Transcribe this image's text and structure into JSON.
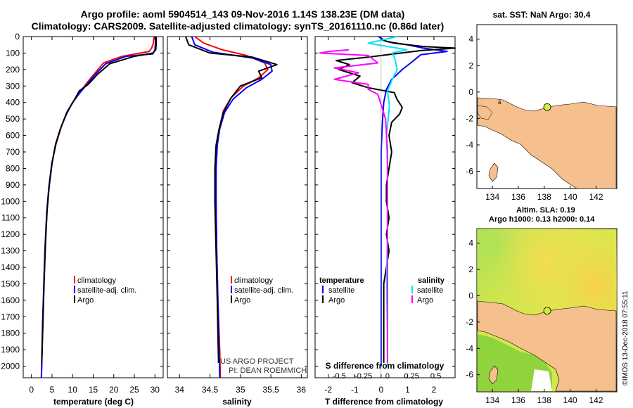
{
  "header": {
    "line1": "Argo profile: aoml 5904514_143 09-Nov-2016 1.14S 138.23E (DM data)",
    "line2": "Climatology: CARS2009. Satellite-adjusted climatology: synTS_20161110.nc (0.86d later)"
  },
  "colors": {
    "climatology": "#ff0000",
    "satellite": "#0000ff",
    "argo": "#000000",
    "sat_salinity": "#00e5ee",
    "argo_salinity": "#ff00ff",
    "land": "#f5c08e",
    "marker": "#c8f03c"
  },
  "depth_ticks": [
    "0",
    "100",
    "200",
    "300",
    "400",
    "500",
    "600",
    "700",
    "800",
    "900",
    "1000",
    "1100",
    "1200",
    "1300",
    "1400",
    "1500",
    "1600",
    "1700",
    "1800",
    "1900",
    "2000"
  ],
  "chart_data": [
    {
      "id": "temperature",
      "type": "line",
      "xlabel": "temperature (deg C)",
      "ylabel": "depth",
      "xlim": [
        -2,
        32
      ],
      "ylim": [
        2070,
        0
      ],
      "xticks": [
        "0",
        "5",
        "10",
        "15",
        "20",
        "25",
        "30"
      ],
      "legend": [
        "climatology",
        "satellite-adj. clim.",
        "Argo"
      ],
      "series": [
        {
          "name": "climatology",
          "color": "#ff0000",
          "points": [
            [
              29.8,
              0
            ],
            [
              29.6,
              40
            ],
            [
              29.2,
              70
            ],
            [
              28.6,
              90
            ],
            [
              22,
              120
            ],
            [
              17.5,
              160
            ],
            [
              15.5,
              220
            ],
            [
              13.5,
              280
            ],
            [
              12,
              330
            ],
            [
              10.5,
              380
            ],
            [
              8.8,
              450
            ],
            [
              7.2,
              550
            ],
            [
              6,
              650
            ],
            [
              5,
              760
            ],
            [
              4.3,
              900
            ],
            [
              3.8,
              1050
            ],
            [
              3.4,
              1250
            ],
            [
              3.1,
              1450
            ],
            [
              2.8,
              1700
            ],
            [
              2.5,
              2000
            ],
            [
              2.4,
              2070
            ]
          ]
        },
        {
          "name": "satellite-adj. clim.",
          "color": "#0000ff",
          "points": [
            [
              30.2,
              0
            ],
            [
              30.1,
              40
            ],
            [
              30,
              80
            ],
            [
              29.5,
              105
            ],
            [
              23,
              120
            ],
            [
              18,
              165
            ],
            [
              15.5,
              230
            ],
            [
              13.5,
              290
            ],
            [
              11.8,
              340
            ],
            [
              10,
              400
            ],
            [
              8.5,
              470
            ],
            [
              7,
              560
            ],
            [
              5.8,
              660
            ],
            [
              4.9,
              780
            ],
            [
              4.2,
              920
            ],
            [
              3.7,
              1070
            ],
            [
              3.3,
              1280
            ],
            [
              3,
              1500
            ],
            [
              2.7,
              1750
            ],
            [
              2.5,
              2000
            ],
            [
              2.4,
              2070
            ]
          ]
        },
        {
          "name": "Argo",
          "color": "#000000",
          "points": [
            [
              30.3,
              0
            ],
            [
              30.3,
              50
            ],
            [
              30.2,
              80
            ],
            [
              29.5,
              100
            ],
            [
              25,
              120
            ],
            [
              19,
              165
            ],
            [
              16,
              230
            ],
            [
              13.8,
              290
            ],
            [
              11.6,
              330
            ],
            [
              10.3,
              390
            ],
            [
              8.6,
              460
            ],
            [
              7.2,
              550
            ],
            [
              5.9,
              650
            ],
            [
              5,
              770
            ],
            [
              4.3,
              910
            ],
            [
              3.8,
              1060
            ],
            [
              3.4,
              1260
            ],
            [
              3.1,
              1480
            ],
            [
              2.8,
              1730
            ],
            [
              2.5,
              1980
            ]
          ]
        }
      ]
    },
    {
      "id": "salinity",
      "type": "line",
      "xlabel": "salinity",
      "ylabel": "depth",
      "xlim": [
        33.8,
        36.1
      ],
      "ylim": [
        2070,
        0
      ],
      "xticks": [
        "34",
        "34.5",
        "35",
        "35.5",
        "36"
      ],
      "legend": [
        "climatology",
        "satellite-adj. clim.",
        "Argo"
      ],
      "series": [
        {
          "name": "climatology",
          "color": "#ff0000",
          "points": [
            [
              34.25,
              0
            ],
            [
              34.4,
              40
            ],
            [
              34.7,
              80
            ],
            [
              35.1,
              115
            ],
            [
              35.4,
              160
            ],
            [
              35.45,
              200
            ],
            [
              35.3,
              250
            ],
            [
              35.05,
              300
            ],
            [
              34.85,
              370
            ],
            [
              34.72,
              450
            ],
            [
              34.66,
              550
            ],
            [
              34.62,
              650
            ],
            [
              34.6,
              800
            ],
            [
              34.6,
              1000
            ],
            [
              34.61,
              1300
            ],
            [
              34.63,
              1600
            ],
            [
              34.66,
              1900
            ],
            [
              34.67,
              2070
            ]
          ]
        },
        {
          "name": "satellite-adj. clim.",
          "color": "#0000ff",
          "points": [
            [
              34.2,
              0
            ],
            [
              34.25,
              50
            ],
            [
              34.55,
              95
            ],
            [
              35.2,
              130
            ],
            [
              35.5,
              170
            ],
            [
              35.52,
              210
            ],
            [
              35.35,
              260
            ],
            [
              35.1,
              310
            ],
            [
              34.88,
              380
            ],
            [
              34.74,
              460
            ],
            [
              34.66,
              560
            ],
            [
              34.62,
              660
            ],
            [
              34.6,
              800
            ],
            [
              34.6,
              1000
            ],
            [
              34.61,
              1300
            ],
            [
              34.63,
              1600
            ],
            [
              34.65,
              1900
            ],
            [
              34.66,
              2070
            ]
          ]
        },
        {
          "name": "Argo",
          "color": "#000000",
          "points": [
            [
              34.1,
              0
            ],
            [
              34.15,
              50
            ],
            [
              34.5,
              100
            ],
            [
              35.2,
              125
            ],
            [
              35.6,
              170
            ],
            [
              35.3,
              210
            ],
            [
              35.35,
              250
            ],
            [
              35,
              300
            ],
            [
              34.85,
              370
            ],
            [
              34.72,
              460
            ],
            [
              34.65,
              560
            ],
            [
              34.6,
              660
            ],
            [
              34.58,
              800
            ],
            [
              34.58,
              1000
            ],
            [
              34.6,
              1300
            ],
            [
              34.62,
              1600
            ],
            [
              34.64,
              1980
            ]
          ]
        }
      ]
    },
    {
      "id": "difference",
      "type": "line",
      "xlabel": "T difference from climatology",
      "x2label": "S difference from climatology",
      "xlim": [
        -2.5,
        2.8
      ],
      "x2lim": [
        -0.75,
        0.7
      ],
      "ylim": [
        2070,
        0
      ],
      "xticks": [
        "-2",
        "-1",
        "0",
        "1",
        "2"
      ],
      "x2ticks": [
        "-0.5",
        "-0.25",
        "0",
        "0.25",
        "0.5"
      ],
      "legend_temperature": {
        "heading": "temperature",
        "items": [
          "satellite",
          "Argo"
        ]
      },
      "legend_salinity": {
        "heading": "salinity",
        "items": [
          "satellite",
          "Argo"
        ]
      },
      "series": [
        {
          "name": "temperature satellite",
          "axis": "T",
          "color": "#0000ff",
          "points": [
            [
              -0.1,
              0
            ],
            [
              0.2,
              30
            ],
            [
              1,
              50
            ],
            [
              1.6,
              70
            ],
            [
              2.5,
              90
            ],
            [
              1.5,
              110
            ],
            [
              1.2,
              150
            ],
            [
              0.8,
              200
            ],
            [
              0.4,
              260
            ],
            [
              0.2,
              320
            ],
            [
              0.1,
              400
            ],
            [
              0.05,
              520
            ],
            [
              0,
              700
            ],
            [
              0,
              1000
            ],
            [
              0,
              1500
            ],
            [
              0,
              2000
            ]
          ]
        },
        {
          "name": "temperature Argo",
          "axis": "T",
          "color": "#000000",
          "points": [
            [
              0,
              20
            ],
            [
              0.5,
              40
            ],
            [
              1.6,
              60
            ],
            [
              2.8,
              70
            ],
            [
              1.5,
              85
            ],
            [
              0.5,
              105
            ],
            [
              -0.5,
              125
            ],
            [
              -1.7,
              145
            ],
            [
              -1.2,
              170
            ],
            [
              -1.6,
              200
            ],
            [
              -0.8,
              240
            ],
            [
              -1.1,
              280
            ],
            [
              -0.5,
              310
            ],
            [
              0.5,
              340
            ],
            [
              0.6,
              380
            ],
            [
              0.8,
              430
            ],
            [
              0.7,
              470
            ],
            [
              0.4,
              520
            ],
            [
              0.3,
              600
            ],
            [
              0.4,
              700
            ],
            [
              0.3,
              800
            ],
            [
              0.2,
              900
            ],
            [
              0.2,
              1000
            ],
            [
              0.3,
              1100
            ],
            [
              0.2,
              1200
            ],
            [
              0.3,
              1300
            ],
            [
              0.2,
              1400
            ],
            [
              0.1,
              1500
            ],
            [
              0.1,
              1700
            ],
            [
              0.1,
              1900
            ],
            [
              0.1,
              1980
            ]
          ]
        },
        {
          "name": "salinity satellite",
          "axis": "S",
          "color": "#00e5ee",
          "points": [
            [
              0.1,
              0
            ],
            [
              -0.2,
              40
            ],
            [
              0.2,
              80
            ],
            [
              0.05,
              100
            ],
            [
              0.08,
              140
            ],
            [
              0.1,
              200
            ],
            [
              0.05,
              260
            ],
            [
              0,
              330
            ],
            [
              0.02,
              420
            ],
            [
              -0.01,
              600
            ],
            [
              0,
              800
            ],
            [
              0,
              1000
            ],
            [
              0,
              1200
            ],
            [
              -0.01,
              1500
            ],
            [
              0,
              1800
            ],
            [
              0,
              2000
            ]
          ]
        },
        {
          "name": "salinity Argo",
          "axis": "S",
          "color": "#ff00ff",
          "points": [
            [
              -0.4,
              80
            ],
            [
              -0.6,
              90
            ],
            [
              -0.7,
              100
            ],
            [
              -0.2,
              115
            ],
            [
              -0.1,
              160
            ],
            [
              -0.55,
              190
            ],
            [
              -0.3,
              220
            ],
            [
              -0.55,
              260
            ],
            [
              -0.2,
              290
            ],
            [
              -0.2,
              320
            ],
            [
              -0.1,
              350
            ],
            [
              -0.02,
              500
            ],
            [
              0,
              700
            ],
            [
              0,
              1000
            ],
            [
              0,
              1300
            ],
            [
              0,
              1600
            ],
            [
              0,
              1980
            ]
          ]
        }
      ]
    }
  ],
  "credits": {
    "project": "US ARGO PROJECT",
    "pi": "PI: DEAN ROEMMICH"
  },
  "map_top": {
    "title": "sat. SST: NaN Argo: 30.4",
    "lon_ticks": [
      "134",
      "136",
      "138",
      "140",
      "142"
    ],
    "lat_ticks": [
      "4",
      "2",
      "0",
      "-2",
      "-4",
      "-6"
    ],
    "island_label": "ä",
    "float_position": [
      138.23,
      -1.14
    ]
  },
  "map_bottom": {
    "title1": "Altim. SLA: 0.19",
    "title2": "Argo h1000: 0.13 h2000: 0.14",
    "lon_ticks": [
      "134",
      "136",
      "138",
      "140",
      "142"
    ],
    "lat_ticks": [
      "4",
      "2",
      "0",
      "-2",
      "-4",
      "-6"
    ],
    "float_position": [
      138.23,
      -1.14
    ]
  },
  "watermark": "©IMOS 13-Dec-2018 07:55:11"
}
